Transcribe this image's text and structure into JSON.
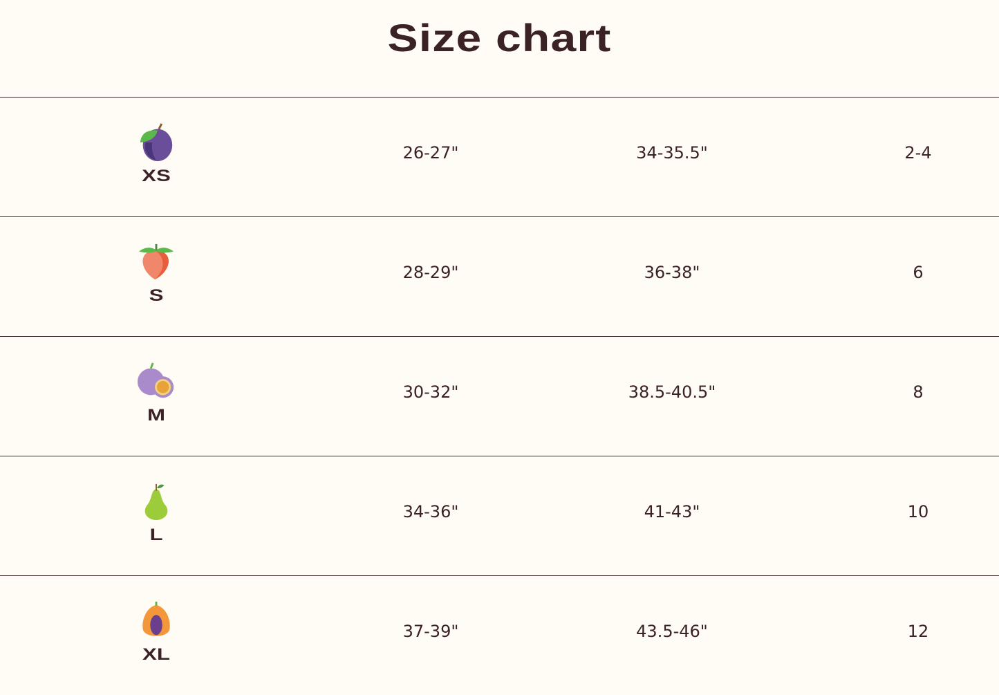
{
  "title": "Size chart",
  "rows": [
    {
      "size": "XS",
      "icon": "plum-icon",
      "col1": "26-27\"",
      "col2": "34-35.5\"",
      "col3": "2-4"
    },
    {
      "size": "S",
      "icon": "peach-icon",
      "col1": "28-29\"",
      "col2": "36-38\"",
      "col3": "6"
    },
    {
      "size": "M",
      "icon": "passion-fruit-icon",
      "col1": "30-32\"",
      "col2": "38.5-40.5\"",
      "col3": "8"
    },
    {
      "size": "L",
      "icon": "pear-icon",
      "col1": "34-36\"",
      "col2": "41-43\"",
      "col3": "10"
    },
    {
      "size": "XL",
      "icon": "papaya-icon",
      "col1": "37-39\"",
      "col2": "43.5-46\"",
      "col3": "12"
    }
  ],
  "colors": {
    "background": "#fffcf5",
    "text": "#3b2224"
  }
}
